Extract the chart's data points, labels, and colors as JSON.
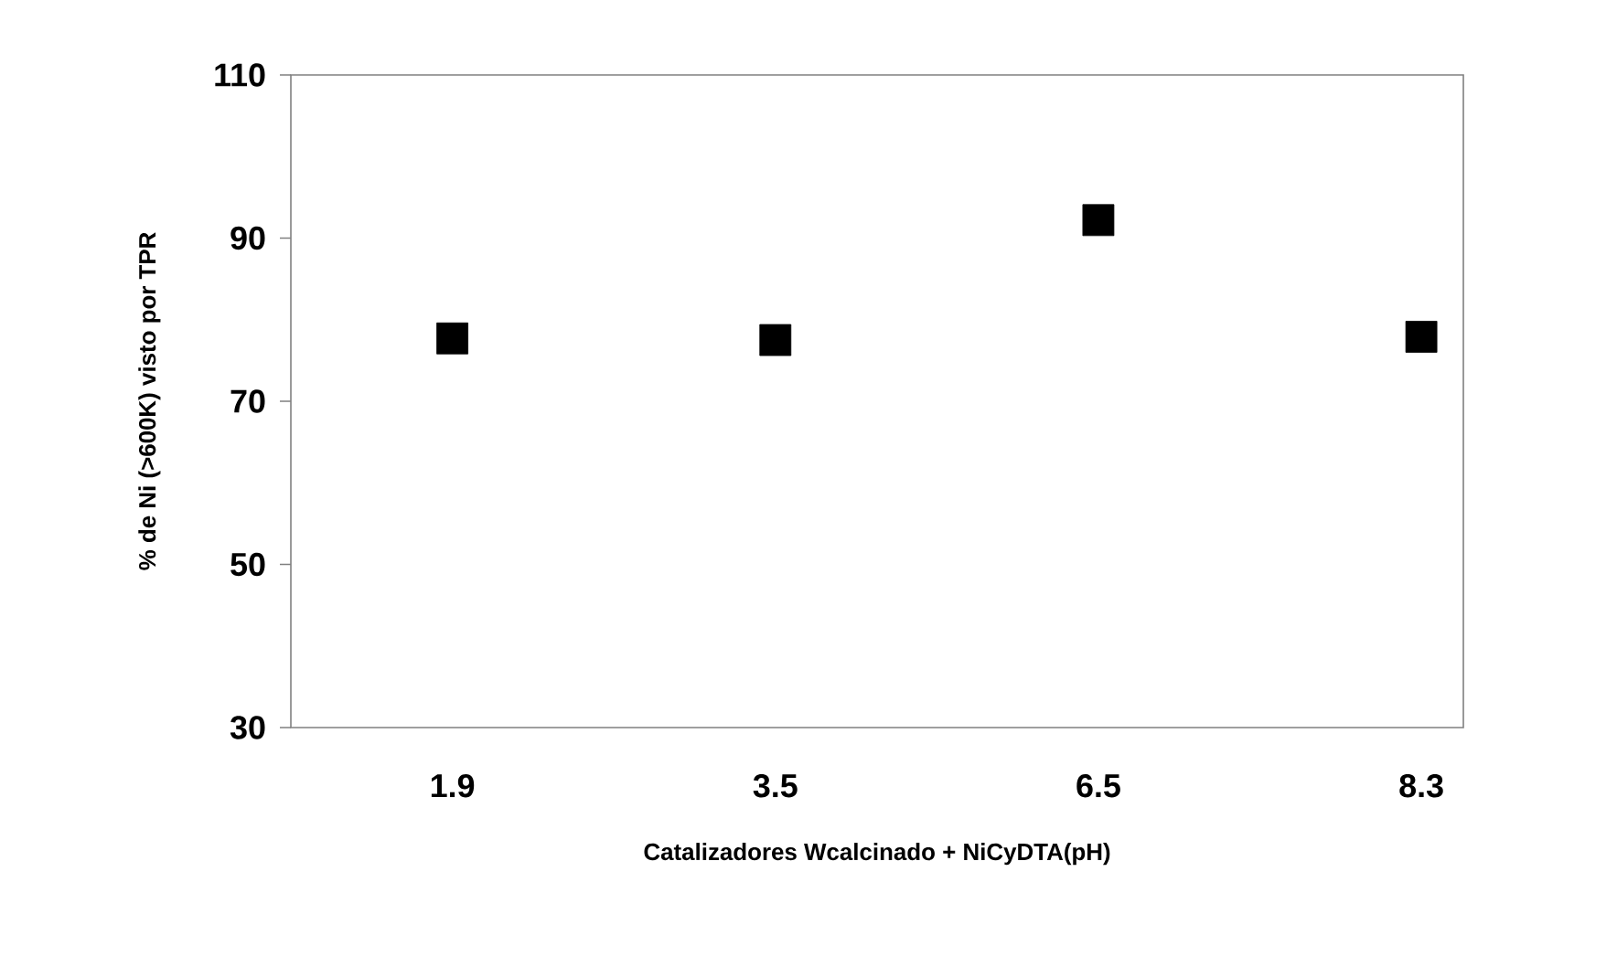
{
  "chart_data": {
    "type": "scatter",
    "xlabel": "Catalizadores Wcalcinado  + NiCyDTA(pH)",
    "ylabel": "% de Ni (>600K) visto por TPR",
    "categories": [
      "1.9",
      "3.5",
      "6.5",
      "8.3"
    ],
    "values": [
      77.7,
      77.5,
      92.2,
      77.9
    ],
    "color": "#000000",
    "marker": "square",
    "ylim": [
      30,
      110
    ],
    "yticks": [
      30,
      50,
      70,
      90,
      110
    ]
  }
}
